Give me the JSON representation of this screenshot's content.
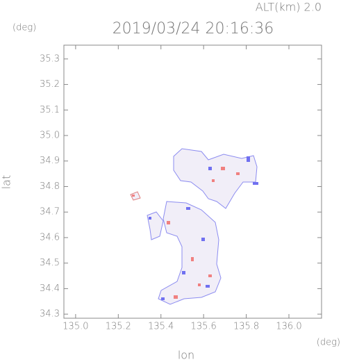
{
  "chart_data": {
    "type": "map",
    "title": "2019/03/24 20:16:36",
    "altitude_label": "ALT(km) 2.0",
    "x_label": "lon",
    "x_unit": "(deg)",
    "y_label": "lat",
    "y_unit": "(deg)",
    "xlim": [
      134.945,
      136.153
    ],
    "xticks": [
      {
        "value": 135.0,
        "label": "135.0"
      },
      135.2,
      135.4,
      135.6,
      135.8,
      {
        "value": 136.0,
        "label": "136.0"
      }
    ],
    "ylim": [
      34.284,
      35.354
    ],
    "yticks": [
      35.3,
      35.2,
      35.1,
      {
        "value": 35.0,
        "label": "35.0"
      },
      34.9,
      34.8,
      34.7,
      34.6,
      34.5,
      34.4,
      34.3
    ],
    "frame_color": "#888888"
  }
}
